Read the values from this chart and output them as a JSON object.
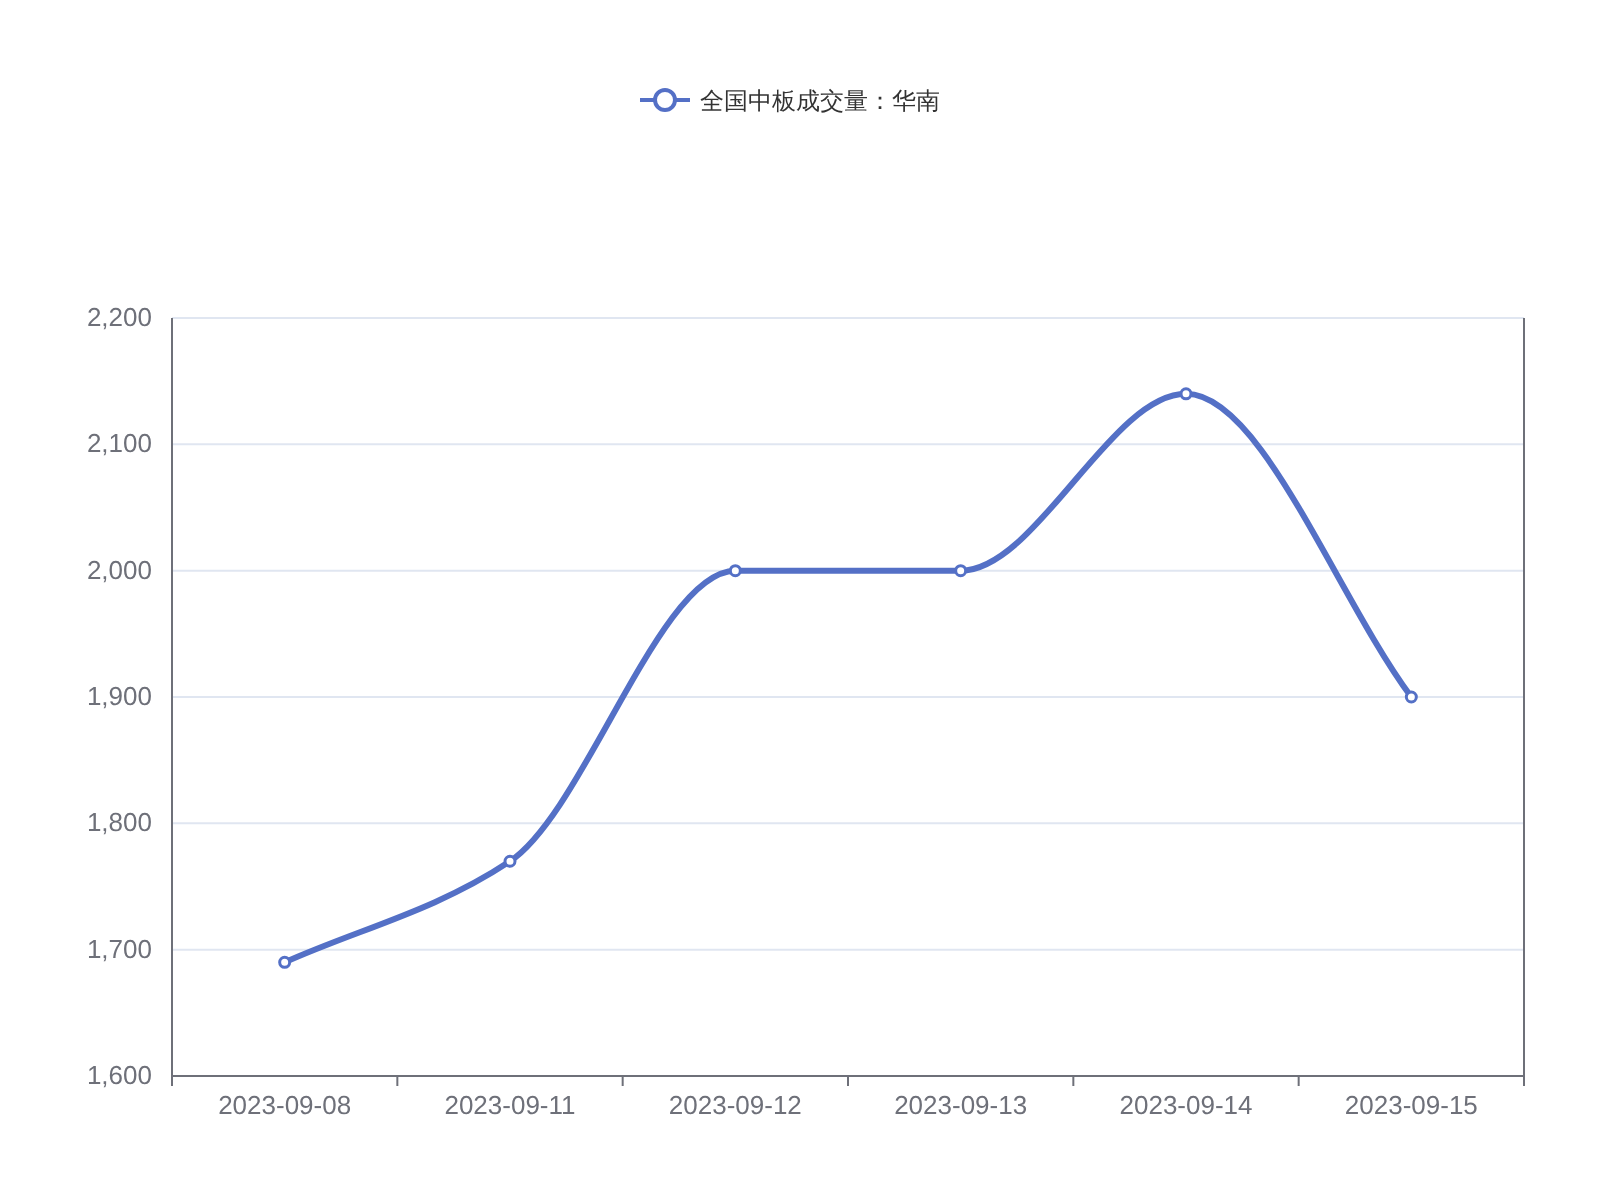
{
  "chart_data": {
    "type": "line",
    "categories": [
      "2023-09-08",
      "2023-09-11",
      "2023-09-12",
      "2023-09-13",
      "2023-09-14",
      "2023-09-15"
    ],
    "series": [
      {
        "name": "全国中板成交量：华南",
        "color": "#5470c6",
        "values": [
          1690,
          1770,
          2000,
          2000,
          2140,
          1900
        ]
      }
    ],
    "ylim": [
      1600,
      2200
    ],
    "yticks": [
      {
        "value": 1600,
        "label": "1,600"
      },
      {
        "value": 1700,
        "label": "1,700"
      },
      {
        "value": 1800,
        "label": "1,800"
      },
      {
        "value": 1900,
        "label": "1,900"
      },
      {
        "value": 2000,
        "label": "2,000"
      },
      {
        "value": 2100,
        "label": "2,100"
      },
      {
        "value": 2200,
        "label": "2,200"
      }
    ],
    "grid": "y",
    "legend": "top",
    "marker": "circle",
    "line_style": "solid"
  }
}
